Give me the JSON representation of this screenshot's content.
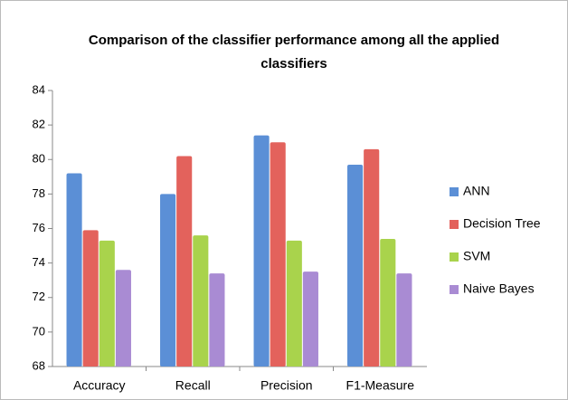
{
  "chart_data": {
    "type": "bar",
    "title": "Comparison of the classifier performance among all the applied classifiers",
    "categories": [
      "Accuracy",
      "Recall",
      "Precision",
      "F1-Measure"
    ],
    "series": [
      {
        "name": "ANN",
        "color": "#5b8fd6",
        "values": [
          79.2,
          78.0,
          81.4,
          79.7
        ]
      },
      {
        "name": "Decision Tree",
        "color": "#e3625c",
        "values": [
          75.9,
          80.2,
          81.0,
          80.6
        ]
      },
      {
        "name": "SVM",
        "color": "#a9d34c",
        "values": [
          75.3,
          75.6,
          75.3,
          75.4
        ]
      },
      {
        "name": "Naive Bayes",
        "color": "#a98bd3",
        "values": [
          73.6,
          73.4,
          73.5,
          73.4
        ]
      }
    ],
    "ylim": [
      68,
      84
    ],
    "yticks": [
      68,
      70,
      72,
      74,
      76,
      78,
      80,
      82,
      84
    ],
    "grid": false,
    "legend": "right"
  }
}
